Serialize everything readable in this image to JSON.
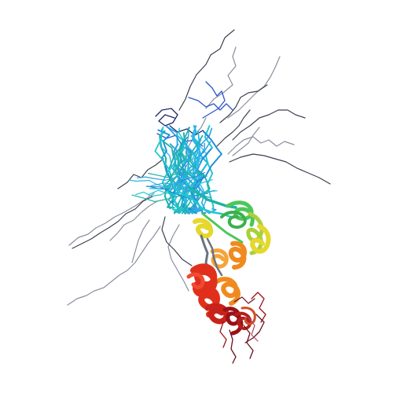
{
  "image": {
    "subject": "protein-structure-ensemble",
    "background": "#ffffff",
    "colors": {
      "gray": "#8a8f9e",
      "dark_gray": "#3b4150",
      "navy": "#1f2a6b",
      "blue": "#2c56c8",
      "light_blue": "#2fa4df",
      "cyan": "#22c7d1",
      "teal": "#1fb3a7",
      "green": "#4cc75a",
      "yellow_green": "#a6d13b",
      "yellow": "#e6d72e",
      "orange": "#f08a1f",
      "red": "#e0301c",
      "dark_red": "#9a1117",
      "maroon": "#6a0f1d"
    }
  }
}
